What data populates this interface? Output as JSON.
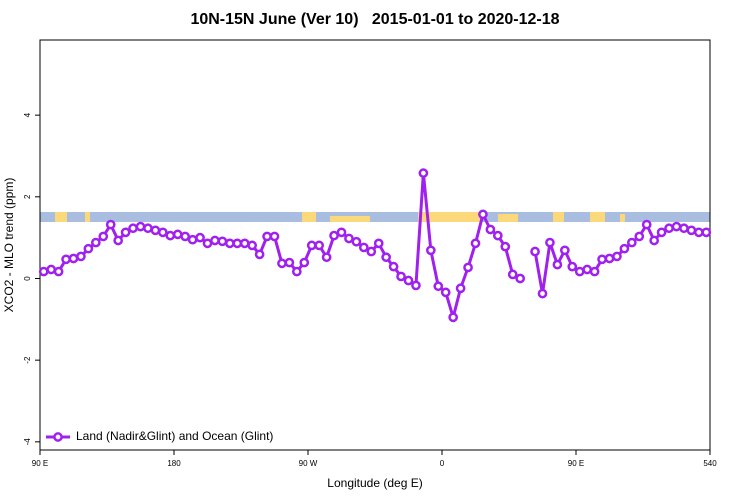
{
  "chart_data": {
    "type": "line",
    "title": "10N-15N June (Ver 10)   2015-01-01 to 2020-12-18",
    "x_label": "Longitude (deg E)",
    "y_label": "XCO2 - MLO trend (ppm)",
    "xlim": [
      90,
      540
    ],
    "ylim": [
      -4.2,
      5.84
    ],
    "xticks": [
      {
        "value": 90,
        "label": "90 E"
      },
      180,
      {
        "value": 270,
        "label": "90 W"
      },
      {
        "value": 360,
        "label": "0"
      },
      {
        "value": 450,
        "label": "90 E"
      },
      540
    ],
    "yticks": [
      -4,
      -2,
      0,
      2,
      4
    ],
    "legend": "bottom-left",
    "x": [
      92.5,
      97.5,
      102.5,
      107.5,
      112.5,
      117.5,
      122.5,
      127.5,
      132.5,
      137.5,
      142.5,
      147.5,
      152.5,
      157.5,
      162.5,
      167.5,
      172.5,
      177.5,
      182.5,
      187.5,
      192.5,
      197.5,
      202.5,
      207.5,
      212.5,
      217.5,
      222.5,
      227.5,
      232.5,
      237.5,
      242.5,
      247.5,
      252.5,
      257.5,
      262.5,
      267.5,
      272.5,
      277.5,
      282.5,
      287.5,
      292.5,
      297.5,
      302.5,
      307.5,
      312.5,
      317.5,
      322.5,
      327.5,
      332.5,
      337.5,
      342.5,
      347.5,
      352.5,
      357.5,
      362.5,
      367.5,
      372.5,
      377.5,
      382.5,
      387.5,
      392.5,
      397.5,
      402.5,
      407.5,
      412.5,
      417.5,
      422.5,
      427.5,
      432.5,
      437.5,
      442.5,
      447.5,
      452.5,
      457.5,
      462.5,
      467.5,
      472.5,
      477.5,
      482.5,
      487.5,
      492.5,
      497.5,
      502.5,
      507.5,
      512.5,
      517.5,
      522.5,
      527.5,
      532.5,
      537.5
    ],
    "series": [
      {
        "name": "Land (Nadir&Glint) and Ocean (Glint)",
        "color": "#a020f0",
        "values": [
          0.17,
          0.22,
          0.17,
          0.47,
          0.49,
          0.54,
          0.73,
          0.88,
          1.03,
          1.32,
          0.93,
          1.13,
          1.23,
          1.27,
          1.23,
          1.18,
          1.13,
          1.05,
          1.08,
          1.03,
          0.95,
          1.0,
          0.86,
          0.93,
          0.91,
          0.86,
          0.86,
          0.86,
          0.81,
          0.59,
          1.03,
          1.03,
          0.37,
          0.39,
          0.17,
          0.39,
          0.81,
          0.81,
          0.52,
          1.05,
          1.13,
          0.98,
          0.9,
          0.76,
          0.66,
          0.86,
          0.52,
          0.29,
          0.05,
          -0.05,
          -0.17,
          2.58,
          0.69,
          -0.19,
          -0.34,
          -0.95,
          -0.24,
          0.27,
          0.86,
          1.57,
          1.2,
          1.05,
          0.78,
          0.1,
          0.0,
          null,
          0.66,
          -0.37,
          0.88,
          0.34,
          0.69,
          0.29,
          0.17,
          0.22,
          0.17,
          0.47,
          0.49,
          0.54,
          0.73,
          0.88,
          1.03,
          1.32,
          0.93,
          1.13,
          1.23,
          1.27,
          1.23,
          1.18,
          1.13,
          1.13
        ]
      }
    ]
  }
}
